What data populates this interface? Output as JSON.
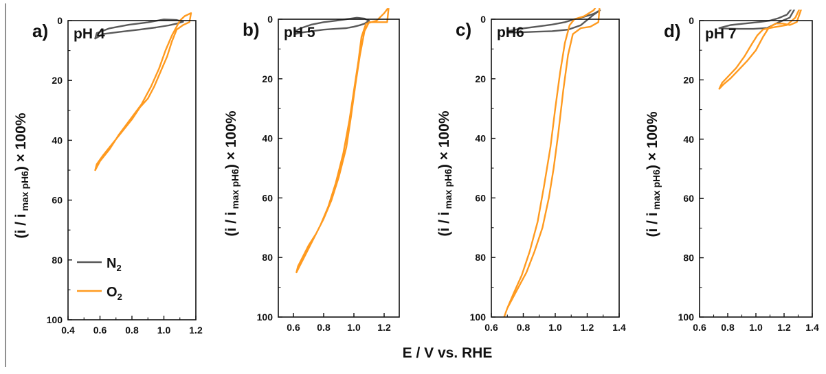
{
  "figure": {
    "xlabel": "E / V vs. RHE",
    "colors": {
      "N2": "#595959",
      "O2": "#ff9a1f"
    },
    "legend": {
      "placement": "bottom-left of panel a",
      "entries": [
        {
          "series": "N2",
          "base": "N",
          "sub": "2"
        },
        {
          "series": "O2",
          "base": "O",
          "sub": "2"
        }
      ]
    }
  },
  "chart_data": [
    {
      "type": "line",
      "panel": "a)",
      "title": "pH 4",
      "ylabel_main": "(i / i",
      "ylabel_sub": "max pH6",
      "ylabel_tail": ") × 100%",
      "xlim": [
        0.4,
        1.2
      ],
      "ylim": [
        0,
        100
      ],
      "y_inverted": true,
      "xticks": [
        "0.4",
        "0.6",
        "0.8",
        "1.0",
        "1.2"
      ],
      "yticks": [
        "0",
        "20",
        "40",
        "60",
        "80",
        "100"
      ],
      "series": [
        {
          "name": "N2",
          "x": [
            0.57,
            0.62,
            0.72,
            0.85,
            0.95,
            1.03,
            1.08,
            1.12,
            1.08,
            1.0,
            0.9,
            0.78,
            0.66,
            0.58,
            0.57
          ],
          "y": [
            6.0,
            4.5,
            3.8,
            3.0,
            2.3,
            1.6,
            1.0,
            0.4,
            -0.2,
            -0.4,
            0.6,
            1.4,
            2.6,
            4.2,
            6.0
          ]
        },
        {
          "name": "O2",
          "x": [
            1.17,
            1.16,
            1.12,
            1.08,
            1.05,
            1.02,
            0.98,
            0.94,
            0.9,
            0.85,
            0.8,
            0.74,
            0.68,
            0.62,
            0.58,
            0.57,
            0.6,
            0.66,
            0.72,
            0.79,
            0.86,
            0.92,
            0.97,
            1.01,
            1.05,
            1.08,
            1.1,
            1.13,
            1.17
          ],
          "y": [
            -2.5,
            0.5,
            1.5,
            3.0,
            7.0,
            12.0,
            17.0,
            22.0,
            26.0,
            29.0,
            33.0,
            37.0,
            41.0,
            45.0,
            48.0,
            50.0,
            47.0,
            43.0,
            38.0,
            33.0,
            28.0,
            22.0,
            16.0,
            10.0,
            5.0,
            2.0,
            0.0,
            -1.5,
            -2.5
          ]
        }
      ]
    },
    {
      "type": "line",
      "panel": "b)",
      "title": "pH 5",
      "ylabel_main": "(i / i",
      "ylabel_sub": "max pH6",
      "ylabel_tail": ") × 100%",
      "xlim": [
        0.5,
        1.3
      ],
      "ylim": [
        0,
        100
      ],
      "y_inverted": true,
      "xticks": [
        "0.6",
        "0.8",
        "1.0",
        "1.2"
      ],
      "yticks": [
        "0",
        "20",
        "40",
        "60",
        "80",
        "100"
      ],
      "series": [
        {
          "name": "N2",
          "x": [
            0.61,
            0.65,
            0.72,
            0.8,
            0.88,
            0.95,
            1.0,
            1.04,
            1.07,
            1.1,
            1.07,
            1.02,
            0.95,
            0.88,
            0.8,
            0.72,
            0.65,
            0.61,
            0.61
          ],
          "y": [
            5.0,
            4.5,
            4.0,
            3.5,
            3.2,
            3.0,
            2.5,
            2.0,
            1.5,
            0.5,
            -0.2,
            -0.5,
            0.0,
            0.5,
            1.0,
            1.8,
            3.0,
            4.0,
            5.0
          ]
        },
        {
          "name": "O2",
          "x": [
            1.23,
            1.22,
            1.17,
            1.1,
            1.07,
            1.04,
            1.01,
            0.98,
            0.95,
            0.9,
            0.85,
            0.8,
            0.75,
            0.7,
            0.66,
            0.63,
            0.62,
            0.64,
            0.68,
            0.73,
            0.78,
            0.83,
            0.88,
            0.93,
            0.97,
            1.0,
            1.03,
            1.05,
            1.08,
            1.15,
            1.2,
            1.23
          ],
          "y": [
            -4.0,
            1.0,
            1.0,
            1.0,
            4.0,
            12.0,
            22.0,
            33.0,
            43.0,
            53.0,
            61.0,
            67.0,
            72.0,
            76.0,
            80.0,
            83.0,
            85.0,
            83.0,
            79.0,
            74.0,
            69.0,
            63.0,
            55.0,
            45.0,
            34.0,
            24.0,
            14.0,
            6.0,
            1.5,
            0.5,
            -2.0,
            -4.0
          ]
        }
      ]
    },
    {
      "type": "line",
      "panel": "c)",
      "title": "pH6",
      "ylabel_main": "(i / i",
      "ylabel_sub": "max pH6",
      "ylabel_tail": ") × 100%",
      "xlim": [
        0.6,
        1.4
      ],
      "ylim": [
        0,
        100
      ],
      "y_inverted": true,
      "xticks": [
        "0.6",
        "0.8",
        "1.0",
        "1.2",
        "1.4"
      ],
      "yticks": [
        "0",
        "20",
        "40",
        "60",
        "80",
        "100"
      ],
      "series": [
        {
          "name": "N2",
          "x": [
            0.7,
            0.78,
            0.88,
            0.98,
            1.06,
            1.12,
            1.18,
            1.24,
            1.28,
            1.24,
            1.16,
            1.08,
            0.98,
            0.88,
            0.78,
            0.7,
            0.7
          ],
          "y": [
            4.0,
            3.2,
            2.5,
            1.8,
            1.0,
            0.0,
            -0.8,
            -1.8,
            -3.0,
            -1.5,
            2.0,
            3.5,
            4.0,
            4.2,
            4.4,
            4.5,
            4.0
          ]
        },
        {
          "name": "O2",
          "x": [
            1.28,
            1.27,
            1.22,
            1.16,
            1.11,
            1.08,
            1.05,
            1.02,
            0.99,
            0.96,
            0.92,
            0.87,
            0.82,
            0.77,
            0.73,
            0.7,
            0.68,
            0.7,
            0.74,
            0.79,
            0.84,
            0.89,
            0.93,
            0.97,
            1.0,
            1.03,
            1.06,
            1.09,
            1.12,
            1.18,
            1.24,
            1.28
          ],
          "y": [
            -6.0,
            1.0,
            2.5,
            3.0,
            5.0,
            12.0,
            24.0,
            38.0,
            50.0,
            60.0,
            70.0,
            78.0,
            85.0,
            90.0,
            94.0,
            97.0,
            100.0,
            97.0,
            92.0,
            86.0,
            78.0,
            68.0,
            56.0,
            43.0,
            30.0,
            18.0,
            8.0,
            2.0,
            0.0,
            -1.0,
            -3.0,
            -6.0
          ]
        }
      ]
    },
    {
      "type": "line",
      "panel": "d)",
      "title": "pH 7",
      "ylabel_main": "(i / i",
      "ylabel_sub": "max pH6",
      "ylabel_tail": ") × 100%",
      "xlim": [
        0.6,
        1.4
      ],
      "ylim": [
        0,
        100
      ],
      "y_inverted": true,
      "xticks": [
        "0.6",
        "0.8",
        "1.0",
        "1.2",
        "1.4"
      ],
      "yticks": [
        "0",
        "20",
        "40",
        "60",
        "80",
        "100"
      ],
      "series": [
        {
          "name": "N2",
          "x": [
            0.74,
            0.82,
            0.92,
            1.02,
            1.1,
            1.16,
            1.22,
            1.27,
            1.31,
            1.34,
            1.3,
            1.24,
            1.16,
            1.08,
            0.98,
            0.88,
            0.8,
            0.74,
            0.74
          ],
          "y": [
            2.5,
            1.5,
            1.0,
            0.5,
            0.0,
            -0.8,
            -2.0,
            -5.0,
            -10.0,
            -14.0,
            -6.0,
            -1.0,
            0.6,
            2.5,
            2.8,
            2.8,
            2.7,
            2.6,
            2.5
          ]
        },
        {
          "name": "O2",
          "x": [
            1.34,
            1.33,
            1.29,
            1.24,
            1.19,
            1.14,
            1.09,
            1.05,
            1.0,
            0.94,
            0.88,
            0.82,
            0.77,
            0.74,
            0.76,
            0.8,
            0.86,
            0.92,
            0.97,
            1.01,
            1.05,
            1.1,
            1.16,
            1.22,
            1.28,
            1.32,
            1.34
          ],
          "y": [
            -10.0,
            -5.0,
            0.5,
            1.5,
            1.0,
            1.0,
            2.5,
            5.5,
            10.0,
            13.5,
            16.5,
            19.5,
            21.5,
            23.0,
            21.0,
            19.0,
            16.0,
            12.0,
            8.0,
            5.0,
            3.0,
            2.5,
            2.0,
            1.5,
            -1.0,
            -5.0,
            -10.0
          ]
        }
      ]
    }
  ]
}
